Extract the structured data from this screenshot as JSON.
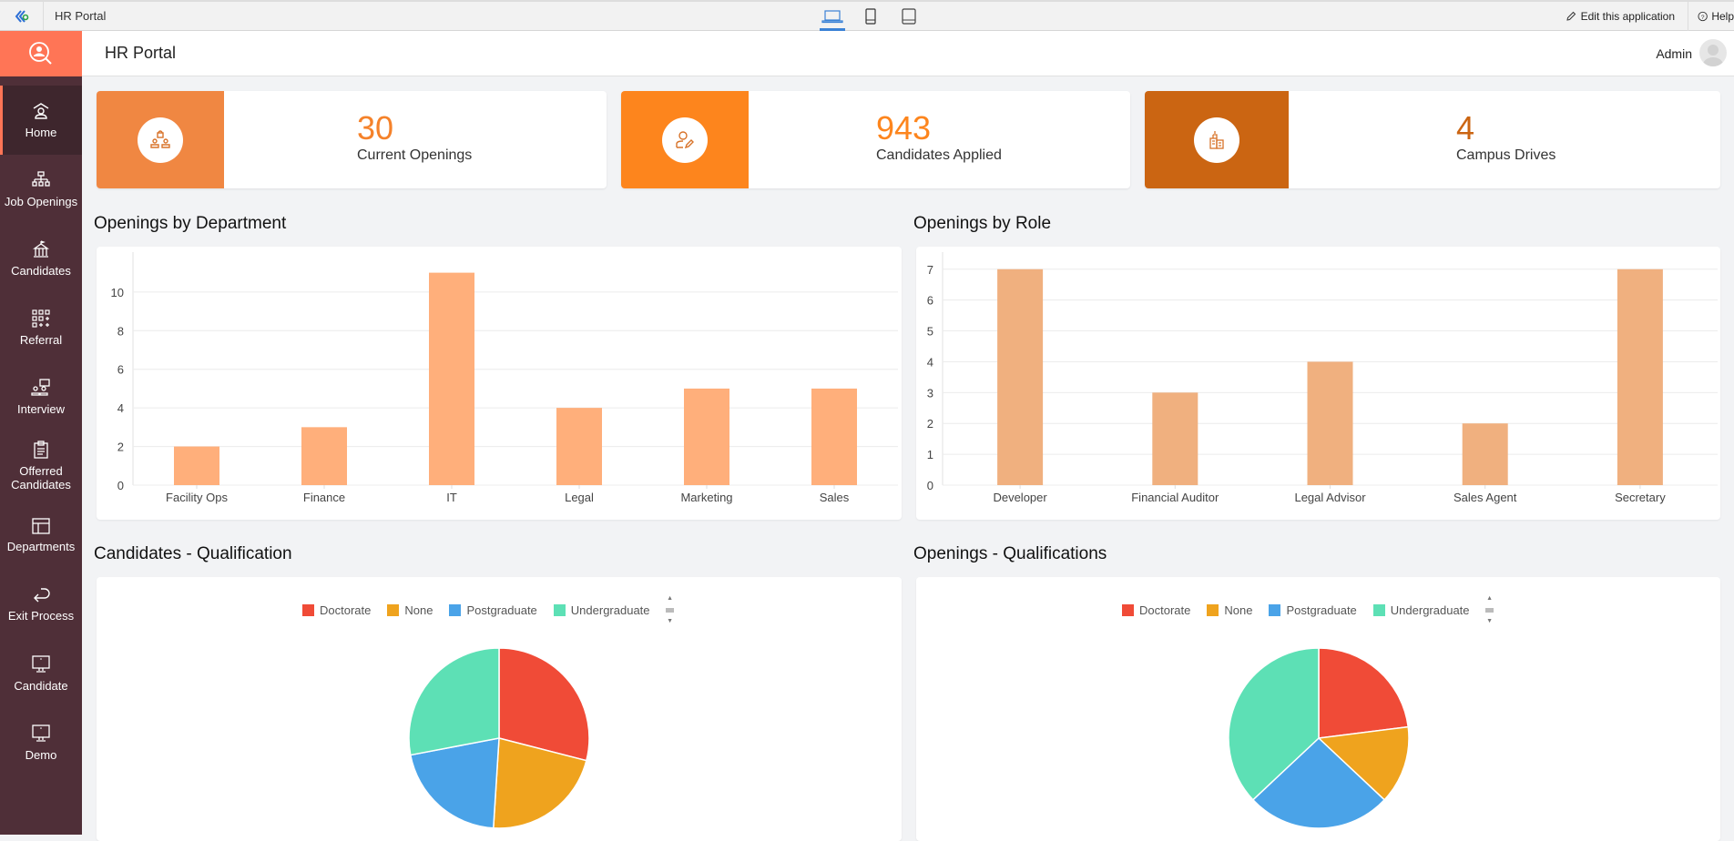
{
  "topbar": {
    "app_name": "HR Portal",
    "devices": [
      "laptop-icon",
      "phone-icon",
      "tablet-icon"
    ],
    "edit_label": "Edit this application",
    "help_label": "Help"
  },
  "header": {
    "title": "HR Portal",
    "user": "Admin"
  },
  "sidebar": {
    "items": [
      {
        "label": "Home",
        "icon": "home-icon",
        "active": true
      },
      {
        "label": "Job Openings",
        "icon": "org-chart-icon"
      },
      {
        "label": "Candidates",
        "icon": "building-icon"
      },
      {
        "label": "Referral",
        "icon": "grid-plus-icon"
      },
      {
        "label": "Interview",
        "icon": "interview-icon"
      },
      {
        "label": "Offerred Candidates",
        "icon": "clipboard-icon"
      },
      {
        "label": "Departments",
        "icon": "layout-icon"
      },
      {
        "label": "Exit Process",
        "icon": "return-icon"
      },
      {
        "label": "Candidate",
        "icon": "monitor-icon"
      },
      {
        "label": "Demo",
        "icon": "monitor-icon"
      }
    ]
  },
  "stats": [
    {
      "value": "30",
      "label": "Current Openings",
      "color": "#f08742",
      "num_color": "#f5822a"
    },
    {
      "value": "943",
      "label": "Candidates Applied",
      "color": "#fd851d",
      "num_color": "#fd851d"
    },
    {
      "value": "4",
      "label": "Campus Drives",
      "color": "#cb6512",
      "num_color": "#cb6512"
    }
  ],
  "sections": {
    "dept": "Openings by Department",
    "role": "Openings by Role",
    "cand_qual": "Candidates - Qualification",
    "open_qual": "Openings - Qualifications"
  },
  "chart_data": [
    {
      "type": "bar",
      "title": "Openings by Department",
      "categories": [
        "Facility Ops",
        "Finance",
        "IT",
        "Legal",
        "Marketing",
        "Sales"
      ],
      "values": [
        2,
        3,
        11,
        4,
        5,
        5
      ],
      "yticks": [
        0,
        2,
        4,
        6,
        8,
        10
      ],
      "ylim": [
        0,
        11.5
      ],
      "color": "#ffaf7b",
      "grid": true
    },
    {
      "type": "bar",
      "title": "Openings by Role",
      "categories": [
        "Developer",
        "Financial Auditor",
        "Legal Advisor",
        "Sales Agent",
        "Secretary"
      ],
      "values": [
        7,
        3,
        4,
        2,
        7
      ],
      "yticks": [
        0,
        1,
        2,
        3,
        4,
        5,
        6,
        7
      ],
      "ylim": [
        0,
        7.2
      ],
      "color": "#f0b07f",
      "grid": true
    },
    {
      "type": "pie",
      "title": "Candidates - Qualification",
      "labels": [
        "Doctorate",
        "None",
        "Postgraduate",
        "Undergraduate"
      ],
      "values": [
        29,
        22,
        21,
        28
      ],
      "colors": [
        "#f04b37",
        "#efa31e",
        "#4aa3e8",
        "#5de0b5"
      ],
      "legend_position": "top"
    },
    {
      "type": "pie",
      "title": "Openings - Qualifications",
      "labels": [
        "Doctorate",
        "None",
        "Postgraduate",
        "Undergraduate"
      ],
      "values": [
        23,
        14,
        26,
        37
      ],
      "colors": [
        "#f04b37",
        "#efa31e",
        "#4aa3e8",
        "#5de0b5"
      ],
      "legend_position": "top"
    }
  ]
}
